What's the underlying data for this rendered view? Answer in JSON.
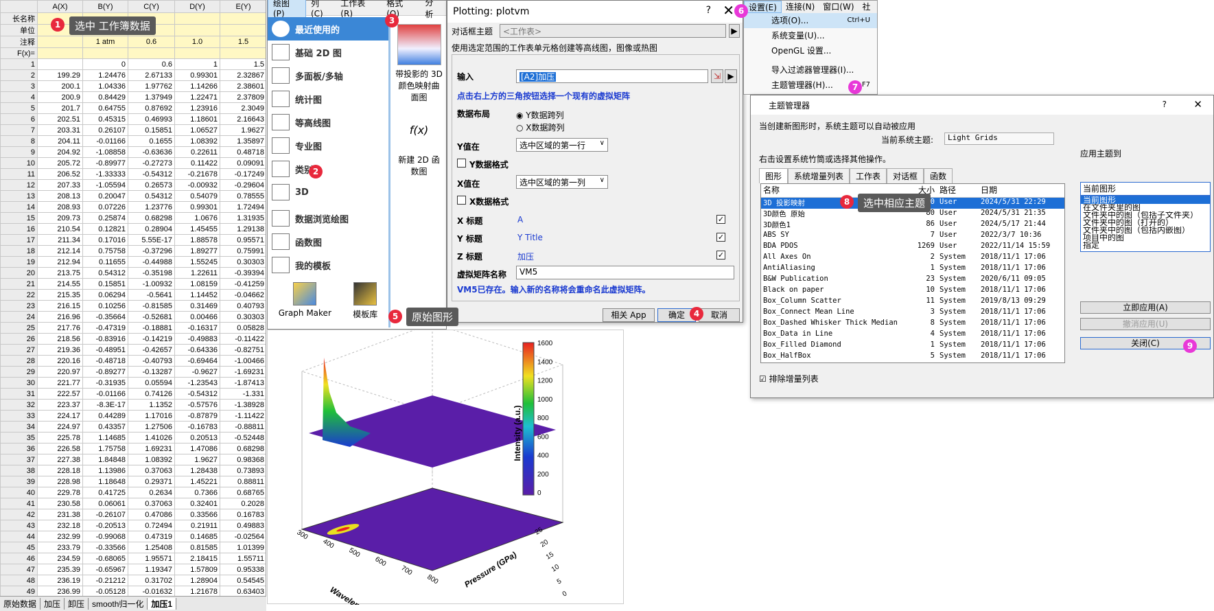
{
  "sheet": {
    "columns": [
      "A(X)",
      "B(Y)",
      "C(Y)",
      "D(Y)",
      "E(Y)"
    ],
    "meta_rows": [
      {
        "label": "长名称",
        "cells": [
          "",
          "",
          "",
          "",
          ""
        ]
      },
      {
        "label": "单位",
        "cells": [
          "",
          "",
          "",
          "",
          ""
        ]
      },
      {
        "label": "注释",
        "cells": [
          "",
          "1 atm",
          "0.6",
          "1.0",
          "1.5"
        ]
      },
      {
        "label": "F(x)=",
        "cells": [
          "",
          "",
          "",
          "",
          ""
        ]
      }
    ],
    "rows": [
      [
        "1",
        "",
        "0",
        "0.6",
        "1",
        "1.5"
      ],
      [
        "2",
        "199.29",
        "1.24476",
        "2.67133",
        "0.99301",
        "2.32867"
      ],
      [
        "3",
        "200.1",
        "1.04336",
        "1.97762",
        "1.14266",
        "2.38601"
      ],
      [
        "4",
        "200.9",
        "0.84429",
        "1.37949",
        "1.22471",
        "2.37809"
      ],
      [
        "5",
        "201.7",
        "0.64755",
        "0.87692",
        "1.23916",
        "2.3049"
      ],
      [
        "6",
        "202.51",
        "0.45315",
        "0.46993",
        "1.18601",
        "2.16643"
      ],
      [
        "7",
        "203.31",
        "0.26107",
        "0.15851",
        "1.06527",
        "1.9627"
      ],
      [
        "8",
        "204.11",
        "-0.01166",
        "0.1655",
        "1.08392",
        "1.35897"
      ],
      [
        "9",
        "204.92",
        "-1.08858",
        "-0.63636",
        "0.22611",
        "0.48718"
      ],
      [
        "10",
        "205.72",
        "-0.89977",
        "-0.27273",
        "0.11422",
        "0.09091"
      ],
      [
        "11",
        "206.52",
        "-1.33333",
        "-0.54312",
        "-0.21678",
        "-0.17249"
      ],
      [
        "12",
        "207.33",
        "-1.05594",
        "0.26573",
        "-0.00932",
        "-0.29604"
      ],
      [
        "13",
        "208.13",
        "0.20047",
        "0.54312",
        "0.54079",
        "0.78555"
      ],
      [
        "14",
        "208.93",
        "0.07226",
        "1.23776",
        "0.99301",
        "1.72494"
      ],
      [
        "15",
        "209.73",
        "0.25874",
        "0.68298",
        "1.0676",
        "1.31935"
      ],
      [
        "16",
        "210.54",
        "0.12821",
        "0.28904",
        "1.45455",
        "1.29138"
      ],
      [
        "17",
        "211.34",
        "0.17016",
        "5.55E-17",
        "1.88578",
        "0.95571"
      ],
      [
        "18",
        "212.14",
        "0.75758",
        "-0.37296",
        "1.89277",
        "0.75991"
      ],
      [
        "19",
        "212.94",
        "0.11655",
        "-0.44988",
        "1.55245",
        "0.30303"
      ],
      [
        "20",
        "213.75",
        "0.54312",
        "-0.35198",
        "1.22611",
        "-0.39394"
      ],
      [
        "21",
        "214.55",
        "0.15851",
        "-1.00932",
        "1.08159",
        "-0.41259"
      ],
      [
        "22",
        "215.35",
        "0.06294",
        "-0.5641",
        "1.14452",
        "-0.04662"
      ],
      [
        "23",
        "216.15",
        "0.10256",
        "-0.81585",
        "0.31469",
        "0.40793"
      ],
      [
        "24",
        "216.96",
        "-0.35664",
        "-0.52681",
        "0.00466",
        "0.30303"
      ],
      [
        "25",
        "217.76",
        "-0.47319",
        "-0.18881",
        "-0.16317",
        "0.05828"
      ],
      [
        "26",
        "218.56",
        "-0.83916",
        "-0.14219",
        "-0.49883",
        "-0.11422"
      ],
      [
        "27",
        "219.36",
        "-0.48951",
        "-0.42657",
        "-0.64336",
        "-0.82751"
      ],
      [
        "28",
        "220.16",
        "-0.48718",
        "-0.40793",
        "-0.69464",
        "-1.00466"
      ],
      [
        "29",
        "220.97",
        "-0.89277",
        "-0.13287",
        "-0.9627",
        "-1.69231"
      ],
      [
        "30",
        "221.77",
        "-0.31935",
        "0.05594",
        "-1.23543",
        "-1.87413"
      ],
      [
        "31",
        "222.57",
        "-0.01166",
        "0.74126",
        "-0.54312",
        "-1.331"
      ],
      [
        "32",
        "223.37",
        "-8.3E-17",
        "1.1352",
        "-0.57576",
        "-1.38928"
      ],
      [
        "33",
        "224.17",
        "0.44289",
        "1.17016",
        "-0.87879",
        "-1.11422"
      ],
      [
        "34",
        "224.97",
        "0.43357",
        "1.27506",
        "-0.16783",
        "-0.88811"
      ],
      [
        "35",
        "225.78",
        "1.14685",
        "1.41026",
        "0.20513",
        "-0.52448"
      ],
      [
        "36",
        "226.58",
        "1.75758",
        "1.69231",
        "1.47086",
        "0.68298"
      ],
      [
        "37",
        "227.38",
        "1.84848",
        "1.08392",
        "1.9627",
        "0.98368"
      ],
      [
        "38",
        "228.18",
        "1.13986",
        "0.37063",
        "1.28438",
        "0.73893"
      ],
      [
        "39",
        "228.98",
        "1.18648",
        "0.29371",
        "1.45221",
        "0.88811"
      ],
      [
        "40",
        "229.78",
        "0.41725",
        "0.2634",
        "0.7366",
        "0.68765"
      ],
      [
        "41",
        "230.58",
        "0.06061",
        "0.37063",
        "0.32401",
        "0.2028"
      ],
      [
        "42",
        "231.38",
        "-0.26107",
        "0.47086",
        "0.33566",
        "0.16783"
      ],
      [
        "43",
        "232.18",
        "-0.20513",
        "0.72494",
        "0.21911",
        "0.49883"
      ],
      [
        "44",
        "232.99",
        "-0.99068",
        "0.47319",
        "0.14685",
        "-0.02564"
      ],
      [
        "45",
        "233.79",
        "-0.33566",
        "1.25408",
        "0.81585",
        "1.01399"
      ],
      [
        "46",
        "234.59",
        "-0.68065",
        "1.95571",
        "2.18415",
        "1.55711"
      ],
      [
        "47",
        "235.39",
        "-0.65967",
        "1.19347",
        "1.57809",
        "0.95338"
      ],
      [
        "48",
        "236.19",
        "-0.21212",
        "0.31702",
        "1.28904",
        "0.54545"
      ],
      [
        "49",
        "236.99",
        "-0.05128",
        "-0.01632",
        "1.21678",
        "0.63403"
      ]
    ],
    "tabs": [
      "原始数据",
      "加压",
      "卸压",
      "smooth归一化",
      "加压1"
    ]
  },
  "callouts": {
    "c1": "选中 工作簿数据",
    "c5": "原始图形",
    "c8": "选中相应主题"
  },
  "badges": {
    "b1": "1",
    "b2": "2",
    "b3": "3",
    "b4": "4",
    "b5": "5",
    "b6": "6",
    "b7": "7",
    "b8": "8",
    "b9": "9"
  },
  "plotmenu": {
    "menubar": [
      "绘图(P)",
      "列(C)",
      "工作表(R)",
      "格式(O)",
      "分析"
    ],
    "categories": [
      "最近使用的",
      "基础 2D 图",
      "多面板/多轴",
      "统计图",
      "等高线图",
      "专业图",
      "类别",
      "3D",
      "数据浏览绘图",
      "函数图",
      "我的模板"
    ],
    "tools": [
      "Graph Maker",
      "模板库"
    ],
    "thumb1": "带投影的 3D 颜色映射曲面图",
    "thumb2": "新建 2D 函数图"
  },
  "dialog": {
    "title": "Plotting: plotvm",
    "theme_label": "对话框主题",
    "theme_value": "<工作表>",
    "desc": "使用选定范围的工作表单元格创建等高线图，图像或热图",
    "input_label": "输入",
    "input_value": "[A2]加压",
    "hint": "点击右上方的三角按钮选择一个现有的虚拟矩阵",
    "layout_label": "数据布局",
    "radio1": "Y数据跨列",
    "radio2": "X数据跨列",
    "y_values_label": "Y值在",
    "y_values_sel": "选中区域的第一行",
    "y_fmt": "Y数据格式",
    "x_values_label": "X值在",
    "x_values_sel": "选中区域的第一列",
    "x_fmt": "X数据格式",
    "x_title_label": "X 标题",
    "x_title_value": "A",
    "y_title_label": "Y 标题",
    "y_title_value": "Y Title",
    "z_title_label": "Z 标题",
    "z_title_value": "加压",
    "vm_name_label": "虚拟矩阵名称",
    "vm_name_value": "VM5",
    "warning": "VM5已存在。输入新的名称将会重命名此虚拟矩阵。",
    "btn_app": "相关 App",
    "btn_ok": "确定",
    "btn_cancel": "取消"
  },
  "settings_menu": {
    "menubar": [
      "设置(E)",
      "连接(N)",
      "窗口(W)",
      "社"
    ],
    "items": [
      {
        "label": "选项(O)...",
        "shortcut": "Ctrl+U"
      },
      {
        "label": "系统变量(U)...",
        "shortcut": ""
      },
      {
        "label": "OpenGL 设置...",
        "shortcut": ""
      },
      {
        "label": "导入过滤器管理器(I)...",
        "shortcut": ""
      },
      {
        "label": "主题管理器(H)...",
        "shortcut": "F7"
      }
    ]
  },
  "theme_mgr": {
    "title": "主题管理器",
    "q": "?",
    "x": "✕",
    "line1": "当创建新图形时，系统主题可以自动被应用",
    "current_label": "当前系统主题:",
    "current_value": "Light Grids",
    "line2": "右击设置系统竹筒或选择其他操作。",
    "tabs": [
      "图形",
      "系统增量列表",
      "工作表",
      "对话框",
      "函数"
    ],
    "headers": [
      "名称",
      "大小",
      "路径",
      "日期"
    ],
    "rows": [
      [
        "3D 投影映射",
        "30",
        "User",
        "2024/5/31 22:29"
      ],
      [
        "3D颜色 原始",
        "80",
        "User",
        "2024/5/31 21:35"
      ],
      [
        "3D颜色1",
        "86",
        "User",
        "2024/5/17 21:44"
      ],
      [
        "ABS SY",
        "7",
        "User",
        "2022/3/7 10:36"
      ],
      [
        "BDA PDOS",
        "1269",
        "User",
        "2022/11/14 15:59"
      ],
      [
        "All Axes On",
        "2",
        "System",
        "2018/11/1 17:06"
      ],
      [
        "AntiAliasing",
        "1",
        "System",
        "2018/11/1 17:06"
      ],
      [
        "B&W Publication",
        "23",
        "System",
        "2020/6/11 09:05"
      ],
      [
        "Black on paper",
        "10",
        "System",
        "2018/11/1 17:06"
      ],
      [
        "Box_Column Scatter",
        "11",
        "System",
        "2019/8/13 09:29"
      ],
      [
        "Box_Connect Mean Line",
        "3",
        "System",
        "2018/11/1 17:06"
      ],
      [
        "Box_Dashed Whisker Thick Median",
        "8",
        "System",
        "2018/11/1 17:06"
      ],
      [
        "Box_Data in Line",
        "4",
        "System",
        "2018/11/1 17:06"
      ],
      [
        "Box_Filled Diamond",
        "1",
        "System",
        "2018/11/1 17:06"
      ],
      [
        "Box_HalfBox",
        "5",
        "System",
        "2018/11/1 17:06"
      ]
    ],
    "apply_label": "应用主题到",
    "apply_value": "当前图形",
    "apply_options": [
      "当前图形",
      "在文件夹里的图",
      "文件夹中的图（包括子文件夹）",
      "文件夹中的图（打开的）",
      "文件夹中的图（包括内嵌图）",
      "项目中的图",
      "指定"
    ],
    "btn_apply": "立即应用(A)",
    "btn_undo": "撤消应用(U)",
    "btn_close": "关闭(C)",
    "exclude_label": "排除增量列表"
  },
  "graph": {
    "colorbar_label": "Intensity (a.u.)",
    "colorbar_ticks": [
      "1600",
      "1400",
      "1200",
      "1000",
      "800",
      "600",
      "400",
      "200",
      "0"
    ],
    "x_label": "Wavelength (nm)",
    "y_label": "Pressure (GPa)",
    "x_ticks": [
      "300",
      "400",
      "500",
      "600",
      "700",
      "800"
    ],
    "y_ticks": [
      "0",
      "5",
      "10",
      "15",
      "20",
      "25"
    ],
    "colors": {
      "low": "#5a1ea8",
      "mid": "#1fbf3a",
      "high": "#e82020"
    }
  }
}
